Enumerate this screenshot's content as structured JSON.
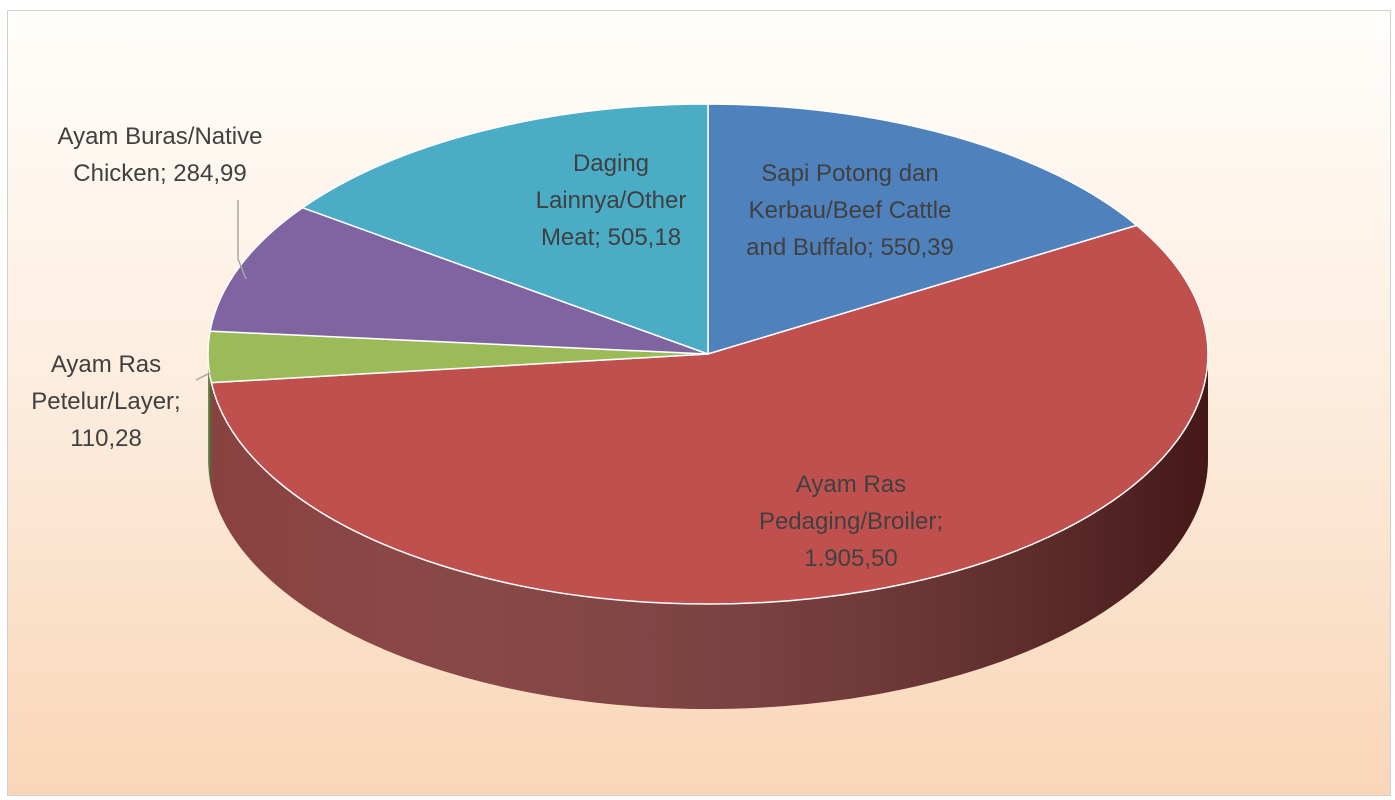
{
  "chart_data": {
    "type": "pie",
    "variant": "3d",
    "title": "",
    "start_angle_deg": 0,
    "direction": "clockwise",
    "slices": [
      {
        "name": "Sapi Potong dan Kerbau/Beef Cattle and Buffalo",
        "value": 550.39,
        "value_label": "550,39",
        "label_lines": [
          "Sapi Potong dan",
          "Kerbau/Beef Cattle",
          "and Buffalo; 550,39"
        ],
        "color": "#4f81bd",
        "side_color": "#2c4d75"
      },
      {
        "name": "Ayam Ras Pedaging/Broiler",
        "value": 1905.5,
        "value_label": "1.905,50",
        "label_lines": [
          "Ayam Ras",
          "Pedaging/Broiler;",
          "1.905,50"
        ],
        "color": "#c0504d",
        "side_color": "#7b2c2a"
      },
      {
        "name": "Ayam Ras Petelur/Layer",
        "value": 110.28,
        "value_label": "110,28",
        "label_lines": [
          "Ayam Ras",
          "Petelur/Layer;",
          "110,28"
        ],
        "color": "#9bbb59",
        "side_color": "#5f7530"
      },
      {
        "name": "Ayam Buras/Native Chicken",
        "value": 284.99,
        "value_label": "284,99",
        "label_lines": [
          "Ayam Buras/Native",
          "Chicken; 284,99"
        ],
        "color": "#8064a2",
        "side_color": "#4d3b62"
      },
      {
        "name": "Daging Lainnya/Other Meat",
        "value": 505.18,
        "value_label": "505,18",
        "label_lines": [
          "Daging",
          "Lainnya/Other",
          "Meat; 505,18"
        ],
        "color": "#4bacc6",
        "side_color": "#276a7c"
      }
    ],
    "legend": "none",
    "data_labels": "category; value"
  }
}
